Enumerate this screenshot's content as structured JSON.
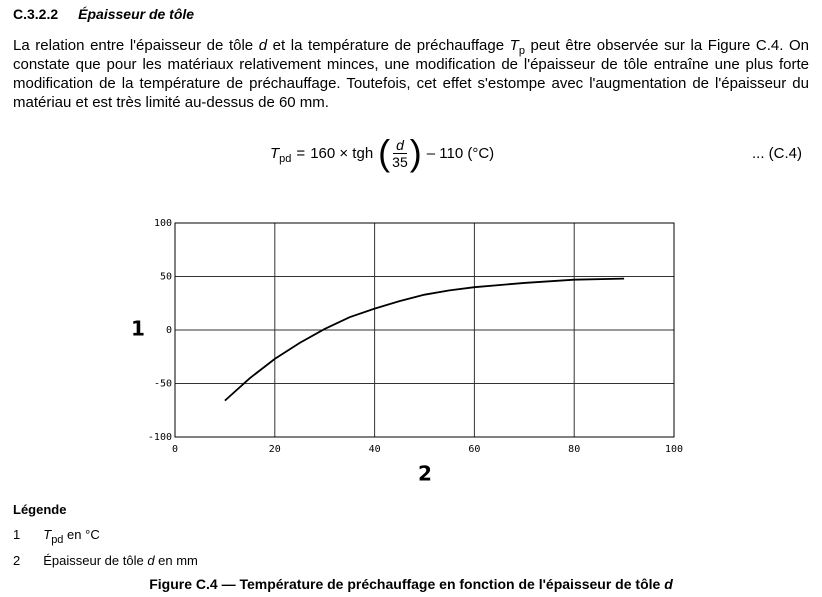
{
  "heading": {
    "number": "C.3.2.2",
    "title": "Épaisseur de tôle"
  },
  "paragraph": [
    "La relation entre l'épaisseur de tôle ",
    "d",
    " et la température de préchauffage ",
    "T",
    "p",
    " peut être observée sur la Figure C.4. On constate que pour les matériaux relativement minces, une modification de l'épaisseur de tôle entraîne une plus forte modification de la température de préchauffage. Toutefois, cet effet s'estompe avec l'augmentation de l'épaisseur du matériau et est très limité au-dessus de 60 mm."
  ],
  "formula": {
    "symbol": "T",
    "subscript": "pd",
    "equals": "=",
    "factor": "160 × tgh",
    "numerator": "d",
    "denominator": "35",
    "rest": "– 110 (°C)",
    "reference": "... (C.4)"
  },
  "chart_data": {
    "type": "line",
    "y_label": "1",
    "x_label": "2",
    "x": [
      10,
      15,
      20,
      25,
      30,
      35,
      40,
      45,
      50,
      55,
      60,
      70,
      80,
      90
    ],
    "values": [
      -66,
      -45,
      -27,
      -12,
      1,
      12,
      20,
      27,
      33,
      37,
      40,
      44,
      47,
      48
    ],
    "color": "#000000",
    "xlim": [
      0,
      100
    ],
    "xticks": [
      0,
      20,
      40,
      60,
      80,
      100
    ],
    "ylim": [
      -100,
      100
    ],
    "yticks": [
      -100,
      -50,
      0,
      50,
      100
    ],
    "grid": true
  },
  "legend": {
    "title": "Légende",
    "items": [
      {
        "number": "1",
        "symbol": "T",
        "subscript": "pd",
        "text": " en °C"
      },
      {
        "number": "2",
        "text": "Épaisseur de tôle ",
        "symbol": "d",
        "rest": " en mm"
      }
    ]
  },
  "caption": [
    "Figure C.4 — Température de préchauffage en fonction de l'épaisseur de tôle ",
    "d"
  ]
}
